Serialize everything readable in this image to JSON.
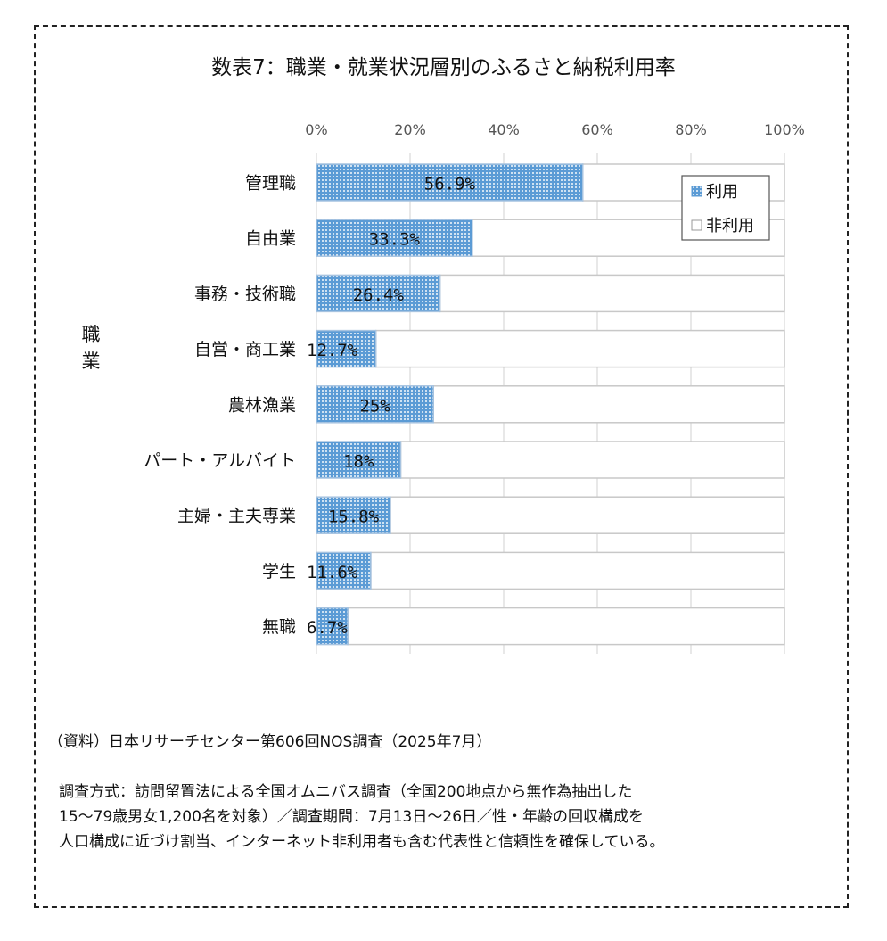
{
  "chart_data": {
    "type": "bar",
    "orientation": "horizontal",
    "stacked": true,
    "title": "数表7：職業・就業状況層別のふるさと納税利用率",
    "ylabel": "職業",
    "xlabel": "",
    "categories": [
      "管理職",
      "自由業",
      "事務・技術職",
      "自営・商工業",
      "農林漁業",
      "パート・アルバイト",
      "主婦・主夫専業",
      "学生",
      "無職"
    ],
    "series": [
      {
        "name": "利用",
        "values": [
          56.9,
          33.3,
          26.4,
          12.7,
          25,
          18,
          15.8,
          11.6,
          6.7
        ],
        "color": "#5b9bd5",
        "pattern": "dotted"
      },
      {
        "name": "非利用",
        "values": [
          43.1,
          66.7,
          73.6,
          87.3,
          75,
          82,
          84.2,
          88.4,
          93.3
        ],
        "color": "#ffffff"
      }
    ],
    "data_labels": [
      "56.9%",
      "33.3%",
      "26.4%",
      "12.7%",
      "25%",
      "18%",
      "15.8%",
      "11.6%",
      "6.7%"
    ],
    "xlim": [
      0,
      100
    ],
    "xticks": [
      "0%",
      "20%",
      "40%",
      "60%",
      "80%",
      "100%"
    ],
    "grid": true,
    "legend_position": "top-right"
  },
  "source": "（資料）日本リサーチセンター第606回NOS調査（2025年7月）",
  "note_lines": [
    "調査方式：訪問留置法による全国オムニバス調査（全国200地点から無作為抽出した",
    "15～79歳男女1,200名を対象）／調査期間：7月13日～26日／性・年齢の回収構成を",
    "人口構成に近づけ割当、インターネット非利用者も含む代表性と信頼性を確保している。"
  ]
}
